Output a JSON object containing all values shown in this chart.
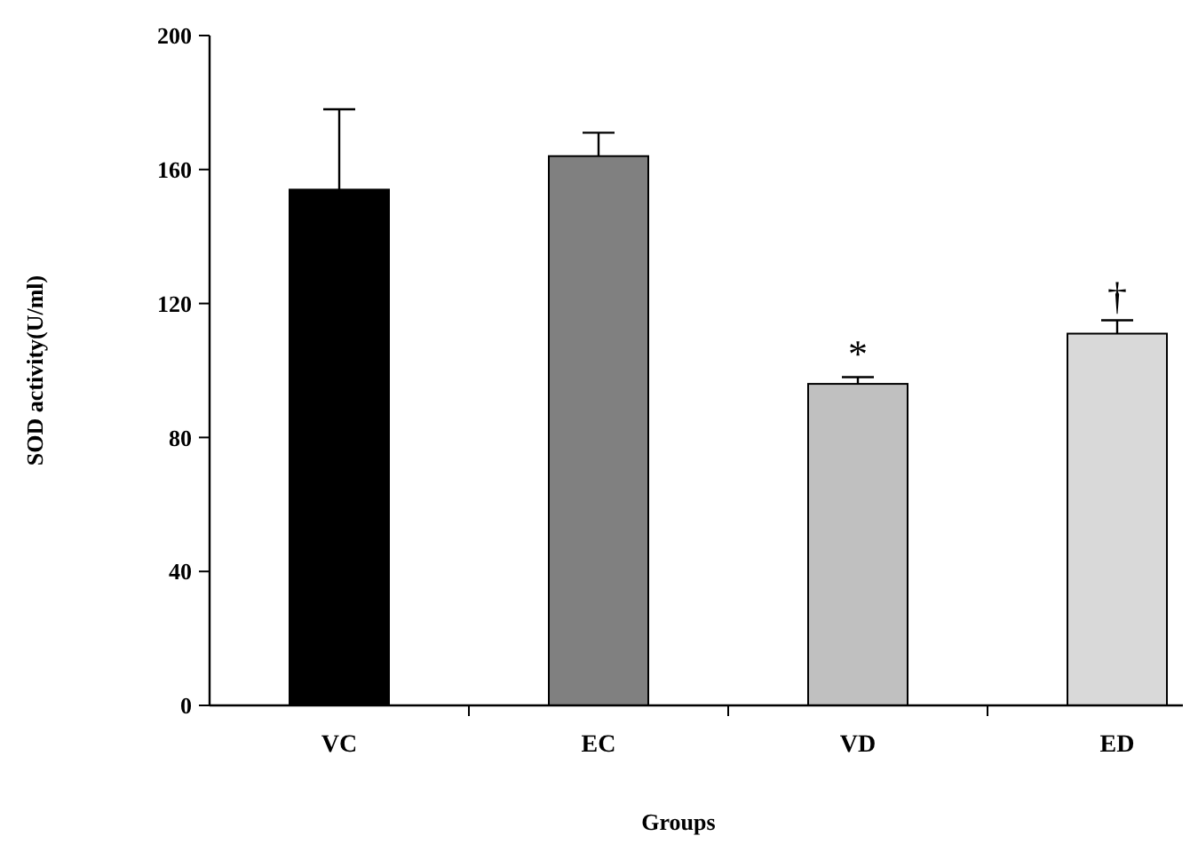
{
  "chart_data": {
    "type": "bar",
    "xlabel": "Groups",
    "ylabel": "SOD activity(U/ml)",
    "categories": [
      "VC",
      "EC",
      "VD",
      "ED"
    ],
    "values": [
      154,
      164,
      96,
      111
    ],
    "colors": [
      "#000000",
      "#808080",
      "#c0c0c0",
      "#d9d9d9"
    ],
    "errors": [
      [
        154,
        178
      ],
      [
        164,
        171
      ],
      [
        96,
        98
      ],
      [
        111,
        115
      ]
    ],
    "ylim": [
      0,
      200
    ],
    "yticks": [
      0,
      40,
      80,
      120,
      160,
      200
    ],
    "grid": false,
    "annotations": [
      {
        "text": "*",
        "x": "VD",
        "y": 98
      },
      {
        "text": "†",
        "x": "ED",
        "y": 115
      }
    ]
  }
}
